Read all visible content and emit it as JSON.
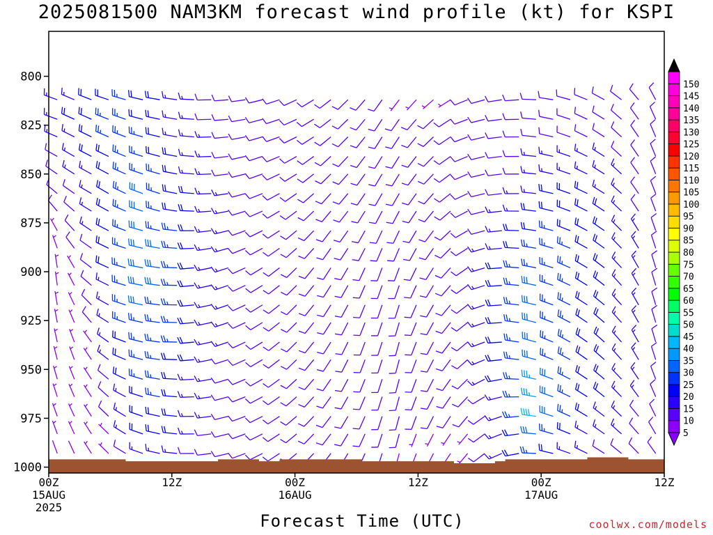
{
  "title": "2025081500 NAM3KM forecast wind profile (kt) for KSPI",
  "credit": "coolwx.com/models",
  "chart_data": {
    "type": "wind_barb_timeheight",
    "title": "2025081500 NAM3KM forecast wind profile (kt) for KSPI",
    "xlabel": "Forecast Time (UTC)",
    "ylabel": "",
    "x_unit": "forecast hour",
    "xlim": [
      0,
      60
    ],
    "y_unit": "hPa",
    "ylim": [
      1003,
      777
    ],
    "y_ticks": [
      {
        "value": 800,
        "label": "800"
      },
      {
        "value": 825,
        "label": "825"
      },
      {
        "value": 850,
        "label": "850"
      },
      {
        "value": 875,
        "label": "875"
      },
      {
        "value": 900,
        "label": "900"
      },
      {
        "value": 925,
        "label": "925"
      },
      {
        "value": 950,
        "label": "950"
      },
      {
        "value": 975,
        "label": "975"
      },
      {
        "value": 1000,
        "label": "1000"
      }
    ],
    "x_ticks": [
      {
        "hour": 0,
        "lines": [
          "00Z",
          "15AUG",
          "2025"
        ]
      },
      {
        "hour": 12,
        "lines": [
          "12Z"
        ]
      },
      {
        "hour": 24,
        "lines": [
          "00Z",
          "16AUG"
        ]
      },
      {
        "hour": 36,
        "lines": [
          "12Z"
        ]
      },
      {
        "hour": 48,
        "lines": [
          "00Z",
          "17AUG"
        ]
      },
      {
        "hour": 60,
        "lines": [
          "12Z"
        ]
      }
    ],
    "grid": false,
    "surface": {
      "color": "#9e5330",
      "hours": [
        0,
        3.5,
        7.5,
        12.5,
        16.5,
        20.5,
        22.5,
        26.5,
        30.5,
        33,
        37.5,
        39.5,
        43.5,
        44.5,
        48.5,
        52.5,
        56.5,
        60
      ],
      "pressure": [
        996,
        996,
        997,
        997,
        996,
        997,
        996,
        996,
        997,
        997,
        997,
        998,
        997,
        996,
        996,
        995,
        996,
        996
      ]
    },
    "barb_levels": [
      812,
      822,
      831,
      841,
      850,
      860,
      869,
      879,
      888,
      898,
      907,
      917,
      926,
      936,
      945,
      955,
      964,
      974,
      983,
      993
    ],
    "colorbar": {
      "labels": [
        "5",
        "10",
        "15",
        "20",
        "25",
        "30",
        "35",
        "40",
        "45",
        "50",
        "55",
        "60",
        "65",
        "70",
        "75",
        "80",
        "85",
        "90",
        "95",
        "100",
        "105",
        "110",
        "115",
        "120",
        "125",
        "130",
        "135",
        "140",
        "145",
        "150"
      ],
      "colors": [
        "#8b00ff",
        "#5a00ff",
        "#2a00ff",
        "#0000ff",
        "#0033ff",
        "#0066ff",
        "#0099ff",
        "#00b8ff",
        "#00ddcc",
        "#00ffaa",
        "#00ff66",
        "#00ff00",
        "#33ff00",
        "#66ff00",
        "#aaff00",
        "#ddff00",
        "#ffff00",
        "#ffdd00",
        "#ffbb00",
        "#ff9900",
        "#ff7700",
        "#ff5500",
        "#ff3300",
        "#ff0000",
        "#ff0033",
        "#ff0066",
        "#ff0099",
        "#ff00bb",
        "#ff00dd",
        "#ff00ff"
      ]
    },
    "barb_rows": [
      {
        "p": 790,
        "dir": [
          290,
          290,
          290,
          285,
          285,
          280,
          280,
          280,
          275,
          275,
          275,
          270,
          270,
          270,
          265,
          265,
          260,
          255,
          250,
          245,
          240,
          235,
          230,
          225,
          225,
          220,
          220,
          225,
          225,
          230,
          235,
          240,
          245,
          250,
          255,
          260,
          260,
          265,
          270,
          275,
          280,
          285,
          290,
          295,
          300,
          310,
          320,
          330
        ],
        "spd": [
          12,
          14,
          16,
          18,
          20,
          20,
          22,
          22,
          20,
          18,
          16,
          14,
          12,
          12,
          10,
          10,
          10,
          8,
          8,
          8,
          8,
          10,
          10,
          10,
          10,
          8,
          8,
          6,
          6,
          6,
          6,
          6,
          8,
          8,
          8,
          8,
          8,
          8,
          10,
          10,
          10,
          10,
          10,
          12,
          12,
          12,
          10,
          10
        ]
      },
      {
        "p": 825,
        "dir": [
          290,
          290,
          295,
          295,
          295,
          290,
          290,
          285,
          285,
          280,
          280,
          275,
          270,
          265,
          265,
          260,
          255,
          255,
          250,
          245,
          240,
          235,
          230,
          225,
          220,
          215,
          210,
          215,
          220,
          225,
          230,
          240,
          250,
          255,
          260,
          265,
          270,
          275,
          280,
          285,
          290,
          295,
          300,
          305,
          315,
          325,
          335,
          340
        ],
        "spd": [
          12,
          14,
          18,
          22,
          22,
          24,
          24,
          22,
          20,
          18,
          16,
          14,
          12,
          12,
          12,
          10,
          10,
          10,
          10,
          10,
          10,
          10,
          10,
          10,
          10,
          8,
          8,
          8,
          8,
          8,
          8,
          8,
          8,
          8,
          8,
          8,
          8,
          10,
          10,
          10,
          10,
          10,
          10,
          10,
          10,
          10,
          10,
          10
        ]
      },
      {
        "p": 860,
        "dir": [
          310,
          310,
          305,
          300,
          300,
          300,
          295,
          290,
          290,
          285,
          280,
          275,
          270,
          265,
          260,
          255,
          250,
          245,
          240,
          235,
          230,
          225,
          220,
          220,
          215,
          210,
          210,
          210,
          215,
          220,
          225,
          235,
          245,
          255,
          260,
          265,
          270,
          275,
          280,
          285,
          290,
          295,
          300,
          305,
          315,
          325,
          335,
          345
        ],
        "spd": [
          8,
          10,
          12,
          14,
          18,
          22,
          26,
          28,
          26,
          24,
          20,
          18,
          16,
          14,
          12,
          12,
          12,
          12,
          12,
          12,
          12,
          12,
          10,
          10,
          10,
          10,
          10,
          8,
          8,
          8,
          8,
          8,
          8,
          10,
          10,
          12,
          14,
          16,
          18,
          20,
          20,
          20,
          18,
          16,
          14,
          12,
          10,
          10
        ]
      },
      {
        "p": 900,
        "dir": [
          360,
          350,
          330,
          310,
          300,
          290,
          285,
          280,
          280,
          275,
          270,
          265,
          260,
          255,
          250,
          245,
          240,
          235,
          230,
          225,
          220,
          215,
          210,
          210,
          205,
          200,
          200,
          200,
          205,
          210,
          215,
          225,
          235,
          250,
          260,
          270,
          275,
          280,
          285,
          290,
          295,
          300,
          305,
          310,
          320,
          330,
          340,
          350
        ],
        "spd": [
          4,
          4,
          6,
          10,
          14,
          20,
          26,
          30,
          30,
          28,
          24,
          20,
          18,
          16,
          14,
          12,
          12,
          12,
          12,
          12,
          12,
          12,
          12,
          12,
          12,
          12,
          12,
          10,
          10,
          10,
          10,
          10,
          12,
          14,
          16,
          20,
          24,
          28,
          28,
          26,
          24,
          22,
          20,
          18,
          16,
          14,
          12,
          10
        ]
      },
      {
        "p": 940,
        "dir": [
          350,
          345,
          340,
          330,
          315,
          300,
          290,
          285,
          280,
          275,
          270,
          265,
          260,
          255,
          250,
          245,
          240,
          235,
          230,
          225,
          220,
          215,
          210,
          205,
          200,
          200,
          195,
          195,
          200,
          205,
          210,
          220,
          230,
          245,
          260,
          270,
          280,
          285,
          290,
          295,
          300,
          305,
          310,
          315,
          320,
          330,
          340,
          350
        ],
        "spd": [
          3,
          3,
          4,
          6,
          10,
          16,
          22,
          26,
          26,
          24,
          22,
          18,
          16,
          14,
          12,
          12,
          12,
          12,
          12,
          12,
          12,
          12,
          12,
          12,
          12,
          12,
          12,
          10,
          10,
          10,
          10,
          10,
          12,
          14,
          18,
          24,
          28,
          30,
          28,
          26,
          24,
          22,
          20,
          18,
          16,
          14,
          12,
          10
        ]
      },
      {
        "p": 975,
        "dir": [
          340,
          340,
          335,
          330,
          320,
          310,
          300,
          290,
          285,
          280,
          275,
          270,
          265,
          260,
          255,
          250,
          245,
          240,
          235,
          230,
          225,
          220,
          215,
          210,
          205,
          200,
          195,
          195,
          200,
          205,
          210,
          215,
          220,
          230,
          245,
          255,
          265,
          275,
          285,
          290,
          295,
          300,
          305,
          310,
          315,
          320,
          330,
          340
        ],
        "spd": [
          3,
          3,
          3,
          4,
          6,
          10,
          16,
          20,
          22,
          22,
          20,
          16,
          14,
          12,
          10,
          10,
          10,
          10,
          10,
          10,
          10,
          10,
          10,
          10,
          10,
          10,
          10,
          8,
          8,
          8,
          8,
          8,
          8,
          10,
          12,
          18,
          26,
          40,
          32,
          26,
          22,
          20,
          18,
          16,
          14,
          12,
          10,
          8
        ]
      },
      {
        "p": 995,
        "dir": [
          340,
          340,
          335,
          330,
          320,
          310,
          300,
          290,
          285,
          280,
          275,
          270,
          265,
          260,
          255,
          250,
          245,
          240,
          235,
          230,
          225,
          220,
          215,
          210,
          205,
          200,
          195,
          195,
          200,
          205,
          210,
          215,
          220,
          230,
          240,
          250,
          260,
          270,
          280,
          285,
          290,
          295,
          300,
          305,
          310,
          315,
          320,
          330
        ],
        "spd": [
          2,
          2,
          2,
          3,
          4,
          6,
          10,
          14,
          16,
          16,
          14,
          12,
          10,
          8,
          8,
          8,
          8,
          8,
          8,
          8,
          8,
          8,
          8,
          8,
          8,
          8,
          8,
          6,
          6,
          6,
          6,
          6,
          6,
          8,
          10,
          14,
          18,
          22,
          20,
          18,
          16,
          14,
          12,
          10,
          10,
          8,
          8,
          6
        ]
      }
    ]
  }
}
